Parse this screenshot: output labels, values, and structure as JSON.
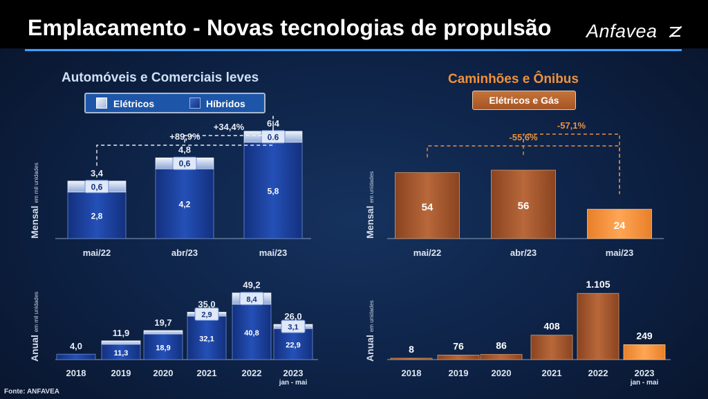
{
  "page": {
    "title": "Emplacamento - Novas tecnologias de propulsão",
    "logo": "Anfavea",
    "source": "Fonte: ANFAVEA"
  },
  "colors": {
    "header_bg": "#000000",
    "accent_line": "#3fa0ff",
    "hybrid_blue": "#1a3e9e",
    "electric_light": "#c7d4ec",
    "truck_brown": "#a55a2c",
    "truck_orange": "#f2953f",
    "title_blue": "#cfe0f5",
    "title_orange": "#f0923c"
  },
  "left": {
    "title": "Automóveis e Comerciais leves",
    "legend": {
      "electric": "Elétricos",
      "hybrid": "Híbridos"
    },
    "monthly_label": "Mensal",
    "monthly_unit": "em mil unidades",
    "annual_label": "Anual",
    "annual_unit": "em mil unidades"
  },
  "right": {
    "title": "Caminhões e Ônibus",
    "tag": "Elétricos e Gás",
    "monthly_label": "Mensal",
    "monthly_unit": "em unidades",
    "annual_label": "Anual",
    "annual_unit": "em unidades"
  },
  "chart_data": [
    {
      "id": "light-monthly",
      "type": "bar",
      "stacked": true,
      "title": "Automóveis e Comerciais leves - Mensal",
      "ylabel": "em mil unidades",
      "categories": [
        "mai/22",
        "abr/23",
        "mai/23"
      ],
      "series": [
        {
          "name": "Híbridos",
          "values": [
            2.8,
            4.2,
            5.8
          ],
          "labels": [
            "2,8",
            "4,2",
            "5,8"
          ]
        },
        {
          "name": "Elétricos",
          "values": [
            0.6,
            0.6,
            0.6
          ],
          "labels": [
            "0,6",
            "0,6",
            "0,6"
          ]
        }
      ],
      "totals": [
        "3,4",
        "4,8",
        "6,4"
      ],
      "comparisons": [
        {
          "from": 0,
          "to": 2,
          "label": "+89,9%"
        },
        {
          "from": 1,
          "to": 2,
          "label": "+34,4%"
        }
      ],
      "ylim": [
        0,
        7
      ]
    },
    {
      "id": "light-annual",
      "type": "bar",
      "stacked": true,
      "title": "Automóveis e Comerciais leves - Anual",
      "ylabel": "em mil unidades",
      "categories": [
        "2018",
        "2019",
        "2020",
        "2021",
        "2022",
        "2023"
      ],
      "category_notes": [
        "",
        "",
        "",
        "",
        "",
        "jan - mai"
      ],
      "series": [
        {
          "name": "Híbridos",
          "values": [
            4.0,
            11.3,
            18.9,
            32.1,
            40.8,
            22.9
          ],
          "labels": [
            "",
            "11,3",
            "18,9",
            "32,1",
            "40,8",
            "22,9"
          ]
        },
        {
          "name": "Elétricos",
          "values": [
            0,
            0.6,
            0.8,
            2.9,
            8.4,
            3.1
          ],
          "labels": [
            "",
            "",
            "",
            "2,9",
            "8,4",
            "3,1"
          ]
        }
      ],
      "totals": [
        "4,0",
        "11,9",
        "19,7",
        "35,0",
        "49,2",
        "26,0"
      ],
      "ylim": [
        0,
        50
      ]
    },
    {
      "id": "heavy-monthly",
      "type": "bar",
      "title": "Caminhões e Ônibus - Mensal",
      "ylabel": "em unidades",
      "categories": [
        "mai/22",
        "abr/23",
        "mai/23"
      ],
      "values": [
        54,
        56,
        24
      ],
      "labels": [
        "54",
        "56",
        "24"
      ],
      "comparisons": [
        {
          "from": 0,
          "to": 2,
          "label": "-55,6%"
        },
        {
          "from": 1,
          "to": 2,
          "label": "-57,1%"
        }
      ],
      "ylim": [
        0,
        60
      ]
    },
    {
      "id": "heavy-annual",
      "type": "bar",
      "title": "Caminhões e Ônibus - Anual",
      "ylabel": "em unidades",
      "categories": [
        "2018",
        "2019",
        "2020",
        "2021",
        "2022",
        "2023"
      ],
      "category_notes": [
        "",
        "",
        "",
        "",
        "",
        "jan - mai"
      ],
      "values": [
        8,
        76,
        86,
        408,
        1105,
        249
      ],
      "labels": [
        "8",
        "76",
        "86",
        "408",
        "1.105",
        "249"
      ],
      "ylim": [
        0,
        1200
      ]
    }
  ]
}
